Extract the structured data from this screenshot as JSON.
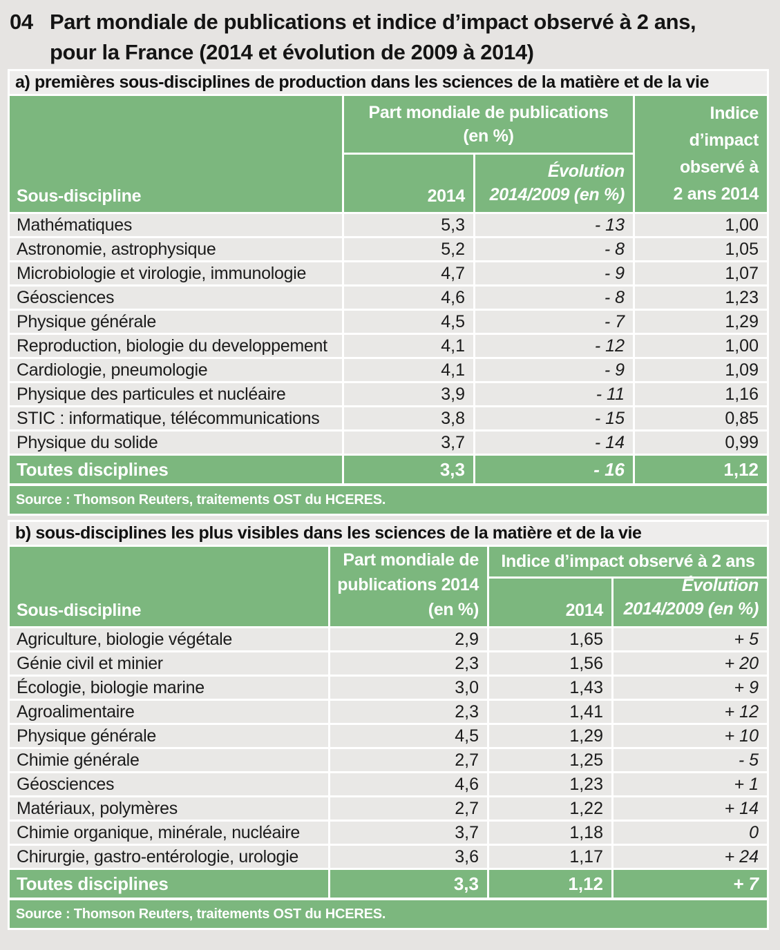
{
  "page": {
    "number": "04",
    "title": "Part mondiale de publications et indice d’impact observé à 2 ans,\npour la France (2014 et évolution de 2009 à 2014)"
  },
  "table_a": {
    "caption": "a) premières sous-disciplines de production dans les sciences de la matière et de la vie",
    "header": {
      "sous_discipline": "Sous-discipline",
      "group": "Part mondiale de publications\n(en %)",
      "col_2014": "2014",
      "evolution": "Évolution\n2014/2009 (en %)",
      "indice": "Indice\nd’impact\nobservé à\n2 ans 2014"
    },
    "rows": [
      {
        "label": "Mathématiques",
        "part": "5,3",
        "evol": "- 13",
        "indice": "1,00"
      },
      {
        "label": "Astronomie, astrophysique",
        "part": "5,2",
        "evol": "- 8",
        "indice": "1,05"
      },
      {
        "label": "Microbiologie et virologie, immunologie",
        "part": "4,7",
        "evol": "- 9",
        "indice": "1,07"
      },
      {
        "label": "Géosciences",
        "part": "4,6",
        "evol": "- 8",
        "indice": "1,23"
      },
      {
        "label": "Physique générale",
        "part": "4,5",
        "evol": "- 7",
        "indice": "1,29"
      },
      {
        "label": "Reproduction, biologie du developpement",
        "part": "4,1",
        "evol": "- 12",
        "indice": "1,00"
      },
      {
        "label": "Cardiologie, pneumologie",
        "part": "4,1",
        "evol": "- 9",
        "indice": "1,09"
      },
      {
        "label": "Physique des particules et nucléaire",
        "part": "3,9",
        "evol": "- 11",
        "indice": "1,16"
      },
      {
        "label": "STIC : informatique, télécommunications",
        "part": "3,8",
        "evol": "- 15",
        "indice": "0,85"
      },
      {
        "label": "Physique du solide",
        "part": "3,7",
        "evol": "- 14",
        "indice": "0,99"
      }
    ],
    "total": {
      "label": "Toutes disciplines",
      "part": "3,3",
      "evol": "- 16",
      "indice": "1,12"
    },
    "source": "Source : Thomson Reuters, traitements OST du HCERES."
  },
  "table_b": {
    "caption": "b) sous-disciplines les plus visibles dans les sciences de la matière et de la vie",
    "header": {
      "sous_discipline": "Sous-discipline",
      "part": "Part mondiale de\npublications 2014\n(en %)",
      "group": "Indice d’impact observé à 2 ans",
      "col_2014": "2014",
      "evolution": "Évolution\n2014/2009 (en %)"
    },
    "rows": [
      {
        "label": "Agriculture, biologie végétale",
        "part": "2,9",
        "indice": "1,65",
        "evol": "+ 5"
      },
      {
        "label": "Génie civil et minier",
        "part": "2,3",
        "indice": "1,56",
        "evol": "+ 20"
      },
      {
        "label": "Écologie, biologie marine",
        "part": "3,0",
        "indice": "1,43",
        "evol": "+ 9"
      },
      {
        "label": "Agroalimentaire",
        "part": "2,3",
        "indice": "1,41",
        "evol": "+ 12"
      },
      {
        "label": "Physique générale",
        "part": "4,5",
        "indice": "1,29",
        "evol": "+ 10"
      },
      {
        "label": "Chimie générale",
        "part": "2,7",
        "indice": "1,25",
        "evol": "- 5"
      },
      {
        "label": "Géosciences",
        "part": "4,6",
        "indice": "1,23",
        "evol": "+ 1"
      },
      {
        "label": "Matériaux, polymères",
        "part": "2,7",
        "indice": "1,22",
        "evol": "+ 14"
      },
      {
        "label": "Chimie organique, minérale, nucléaire",
        "part": "3,7",
        "indice": "1,18",
        "evol": "0"
      },
      {
        "label": "Chirurgie, gastro-entérologie, urologie",
        "part": "3,6",
        "indice": "1,17",
        "evol": "+ 24"
      }
    ],
    "total": {
      "label": "Toutes disciplines",
      "part": "3,3",
      "indice": "1,12",
      "evol": "+ 7"
    },
    "source": "Source : Thomson Reuters, traitements OST du HCERES."
  },
  "colors": {
    "table_green": "#7cb77e",
    "row_background": "#e9e8e6",
    "page_background": "#e6e4e2"
  }
}
